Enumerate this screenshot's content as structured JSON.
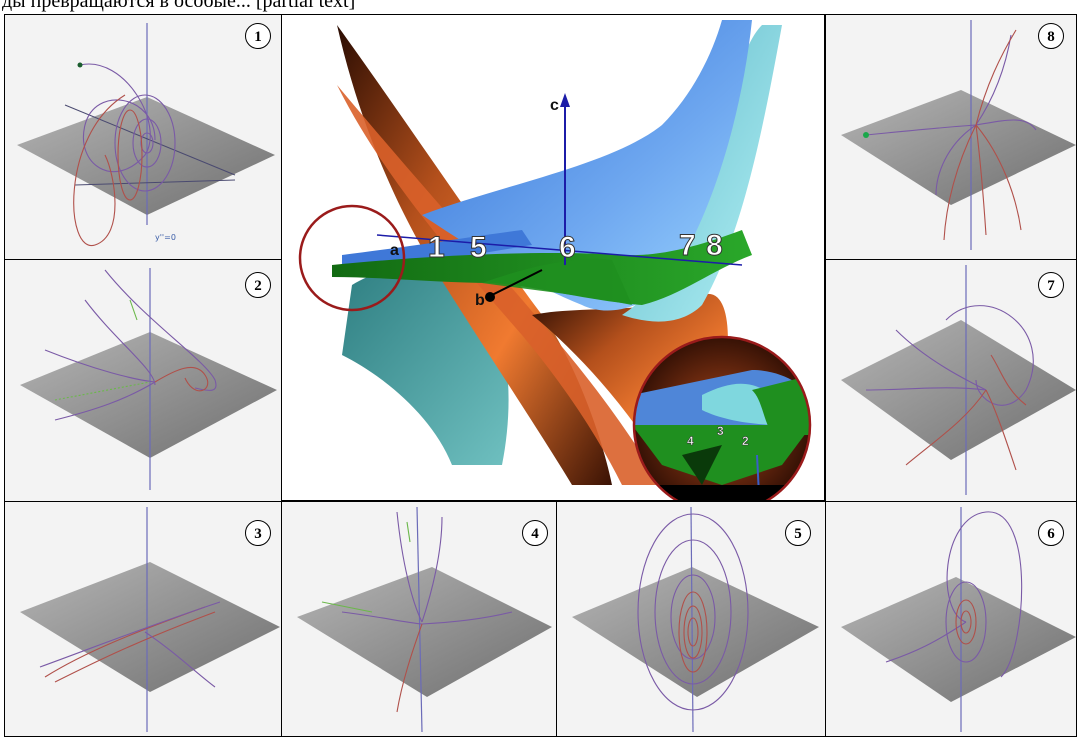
{
  "top_text": "ды превращаются в особые... [partial text]",
  "panels": [
    {
      "id": "1",
      "axis_label": "y''=0"
    },
    {
      "id": "2",
      "axis_label": ""
    },
    {
      "id": "3",
      "axis_label": ""
    },
    {
      "id": "4",
      "axis_label": ""
    },
    {
      "id": "5",
      "axis_label": ""
    },
    {
      "id": "6",
      "axis_label": ""
    },
    {
      "id": "7",
      "axis_label": ""
    },
    {
      "id": "8",
      "axis_label": ""
    }
  ],
  "center": {
    "axis_c": "c",
    "axis_a": "a",
    "axis_b": "b",
    "region_labels": [
      "1",
      "5",
      "6",
      "7",
      "8"
    ],
    "inset_labels": [
      "4",
      "3",
      "2"
    ]
  },
  "colors": {
    "plane": "#8e8e8e",
    "trajectory_purple": "#7a5aa6",
    "trajectory_red": "#b0504a",
    "surface_orange": "#e06a2a",
    "surface_blue": "#4f86d8",
    "surface_cyan": "#7fd7de",
    "surface_teal": "#4c9ea0",
    "surface_green": "#1f8f1f",
    "circle_red": "#9a1b1b"
  }
}
